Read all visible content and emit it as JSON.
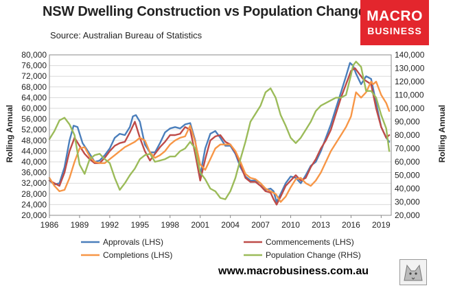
{
  "title": "NSW Dwelling Construction vs Population Change",
  "source": "Source: Australian Bureau of Statistics",
  "logo": {
    "line1": "MACRO",
    "line2": "BUSINESS"
  },
  "url": "www.macrobusiness.com.au",
  "colors": {
    "approvals": "#4a7ebb",
    "commencements": "#be4b48",
    "completions": "#f79646",
    "population": "#9bbb59",
    "logo_bg": "#e3262d"
  },
  "chart_data": {
    "type": "line",
    "title": "NSW Dwelling Construction vs Population Change",
    "xlabel": "",
    "ylabel_left": "Rolling Annual",
    "ylabel_right": "Rolling Annual",
    "xlim": [
      1986,
      2020
    ],
    "ylim_left": [
      20000,
      80000
    ],
    "ylim_right": [
      20000,
      140000
    ],
    "x_ticks": [
      "1986",
      "1989",
      "1992",
      "1995",
      "1998",
      "2001",
      "2004",
      "2007",
      "2010",
      "2013",
      "2016",
      "2019"
    ],
    "y_left_ticks": [
      "20,000",
      "24,000",
      "28,000",
      "32,000",
      "36,000",
      "40,000",
      "44,000",
      "48,000",
      "52,000",
      "56,000",
      "60,000",
      "64,000",
      "68,000",
      "72,000",
      "76,000",
      "80,000"
    ],
    "y_right_ticks": [
      "20,000",
      "30,000",
      "40,000",
      "50,000",
      "60,000",
      "70,000",
      "80,000",
      "90,000",
      "100,000",
      "110,000",
      "120,000",
      "130,000",
      "140,000"
    ],
    "grid": true,
    "legend_position": "bottom",
    "series": [
      {
        "name": "Approvals (LHS)",
        "axis": "left",
        "color": "#4a7ebb",
        "x": [
          1986,
          1986.5,
          1987,
          1987.5,
          1988,
          1988.4,
          1988.8,
          1989.3,
          1990,
          1990.5,
          1991,
          1991.5,
          1992,
          1992.5,
          1993,
          1993.5,
          1994,
          1994.3,
          1994.6,
          1995,
          1995.5,
          1996,
          1996.5,
          1997,
          1997.5,
          1998,
          1998.5,
          1999,
          1999.5,
          2000,
          2000.5,
          2001,
          2001.5,
          2002,
          2002.5,
          2003,
          2003.5,
          2004,
          2004.5,
          2005,
          2005.5,
          2006,
          2006.5,
          2007,
          2007.5,
          2008,
          2008.3,
          2008.6,
          2009,
          2009.5,
          2010,
          2010.5,
          2011,
          2011.5,
          2012,
          2012.5,
          2013,
          2013.5,
          2014,
          2014.5,
          2015,
          2015.5,
          2015.9,
          2016.2,
          2016.5,
          2017,
          2017.5,
          2018,
          2018.5,
          2019,
          2019.5,
          2019.8
        ],
        "y": [
          33000,
          31500,
          32000,
          38000,
          48000,
          53500,
          53000,
          47000,
          43000,
          40000,
          40500,
          42500,
          45000,
          49000,
          50500,
          50000,
          53000,
          57000,
          57500,
          55000,
          46500,
          43500,
          43500,
          47000,
          51000,
          52500,
          53000,
          52500,
          54000,
          54500,
          48000,
          35000,
          45000,
          50500,
          51500,
          49000,
          46000,
          46000,
          43000,
          38000,
          34500,
          33000,
          33000,
          32000,
          29500,
          30000,
          29000,
          25000,
          28000,
          32000,
          34500,
          34000,
          32000,
          35000,
          38500,
          40000,
          44000,
          49000,
          54000,
          60000,
          66000,
          72000,
          77000,
          76000,
          73000,
          69000,
          72000,
          71000,
          62000,
          53000,
          49000,
          47500
        ]
      },
      {
        "name": "Commencements (LHS)",
        "axis": "left",
        "color": "#be4b48",
        "x": [
          1986,
          1986.5,
          1987,
          1987.5,
          1988,
          1988.5,
          1989,
          1989.5,
          1990,
          1990.5,
          1991,
          1991.5,
          1992,
          1992.5,
          1993,
          1993.5,
          1994,
          1994.5,
          1995,
          1995.5,
          1996,
          1996.5,
          1997,
          1997.5,
          1998,
          1998.5,
          1999,
          1999.5,
          2000,
          2000.5,
          2001,
          2001.5,
          2002,
          2002.5,
          2003,
          2003.5,
          2004,
          2004.5,
          2005,
          2005.5,
          2006,
          2006.5,
          2007,
          2007.5,
          2008,
          2008.3,
          2008.6,
          2009,
          2009.5,
          2010,
          2010.5,
          2011,
          2011.5,
          2012,
          2012.5,
          2013,
          2013.5,
          2014,
          2014.5,
          2015,
          2015.5,
          2016,
          2016.4,
          2016.8,
          2017.2,
          2017.6,
          2018,
          2018.5,
          2019,
          2019.5,
          2019.8
        ],
        "y": [
          33000,
          32000,
          31000,
          36000,
          44000,
          49000,
          46000,
          43000,
          41000,
          39500,
          39500,
          41500,
          44000,
          46000,
          47000,
          47500,
          51000,
          55000,
          49000,
          44000,
          40500,
          43000,
          45500,
          47500,
          50000,
          50000,
          50500,
          53000,
          52000,
          43000,
          33000,
          41000,
          48000,
          49500,
          50000,
          47500,
          46500,
          43500,
          39000,
          34000,
          32500,
          32500,
          31000,
          29000,
          28500,
          26000,
          24000,
          27000,
          31000,
          33000,
          35000,
          33000,
          34000,
          38000,
          41000,
          45000,
          48000,
          52000,
          58000,
          64000,
          69000,
          74000,
          75000,
          73000,
          71000,
          70000,
          69000,
          60000,
          53000,
          49000,
          50000
        ]
      },
      {
        "name": "Completions (LHS)",
        "axis": "left",
        "color": "#f79646",
        "x": [
          1986,
          1986.5,
          1987,
          1987.5,
          1988,
          1988.5,
          1989,
          1989.5,
          1990,
          1990.5,
          1991,
          1991.5,
          1992,
          1992.5,
          1993,
          1993.5,
          1994,
          1994.5,
          1995,
          1995.5,
          1996,
          1996.5,
          1997,
          1997.5,
          1998,
          1998.5,
          1999,
          1999.5,
          2000,
          2000.5,
          2001,
          2001.5,
          2002,
          2002.5,
          2003,
          2003.5,
          2004,
          2004.5,
          2005,
          2005.5,
          2006,
          2006.5,
          2007,
          2007.5,
          2008,
          2008.5,
          2009,
          2009.5,
          2010,
          2010.5,
          2011,
          2011.5,
          2012,
          2012.5,
          2013,
          2013.5,
          2014,
          2014.5,
          2015,
          2015.5,
          2016,
          2016.5,
          2017,
          2017.5,
          2018,
          2018.2,
          2018.5,
          2019,
          2019.5,
          2019.8
        ],
        "y": [
          34000,
          31000,
          29000,
          29500,
          34000,
          40000,
          45000,
          45500,
          42000,
          40000,
          39500,
          39500,
          41000,
          42500,
          44000,
          45500,
          46500,
          47500,
          49000,
          48000,
          43500,
          41500,
          42500,
          44000,
          46500,
          48000,
          49000,
          49500,
          53500,
          47500,
          39000,
          37000,
          41000,
          45000,
          46500,
          46500,
          46500,
          44000,
          40000,
          35500,
          34000,
          33500,
          32000,
          30000,
          29000,
          28000,
          25000,
          27000,
          30500,
          33500,
          34000,
          32000,
          31000,
          33000,
          36000,
          40000,
          44000,
          47000,
          50000,
          53000,
          57000,
          66000,
          64000,
          66000,
          70000,
          69000,
          70000,
          65000,
          62000,
          59000
        ]
      },
      {
        "name": "Population Change (RHS)",
        "axis": "right",
        "color": "#9bbb59",
        "x": [
          1986,
          1986.5,
          1987,
          1987.5,
          1988,
          1988.5,
          1989,
          1989.5,
          1990,
          1990.5,
          1991,
          1991.5,
          1992,
          1992.5,
          1993,
          1993.5,
          1994,
          1994.5,
          1995,
          1995.5,
          1996,
          1996.5,
          1997,
          1997.5,
          1998,
          1998.5,
          1999,
          1999.5,
          2000,
          2000.5,
          2001,
          2001.5,
          2002,
          2002.5,
          2003,
          2003.5,
          2004,
          2004.5,
          2005,
          2005.5,
          2006,
          2006.5,
          2007,
          2007.5,
          2008,
          2008.5,
          2009,
          2009.5,
          2010,
          2010.5,
          2011,
          2011.5,
          2012,
          2012.5,
          2013,
          2013.5,
          2014,
          2014.5,
          2015,
          2015.5,
          2016,
          2016.2,
          2016.5,
          2017,
          2017.5,
          2018,
          2018.5,
          2019,
          2019.5,
          2019.8
        ],
        "y": [
          77000,
          83000,
          91000,
          93000,
          88000,
          80000,
          58000,
          51000,
          62000,
          65000,
          66000,
          62000,
          59000,
          48000,
          39000,
          44000,
          50000,
          55000,
          62000,
          65000,
          66000,
          60000,
          61000,
          62000,
          64000,
          64000,
          68000,
          70000,
          75000,
          70000,
          52000,
          47000,
          40000,
          38000,
          33000,
          32000,
          38000,
          48000,
          62000,
          75000,
          90000,
          96000,
          102000,
          112000,
          115000,
          108000,
          95000,
          87000,
          78000,
          74000,
          78000,
          84000,
          90000,
          98000,
          102000,
          104000,
          106000,
          108000,
          108000,
          110000,
          125000,
          132000,
          135000,
          131000,
          113000,
          113000,
          108000,
          95000,
          85000,
          68000
        ]
      }
    ]
  }
}
